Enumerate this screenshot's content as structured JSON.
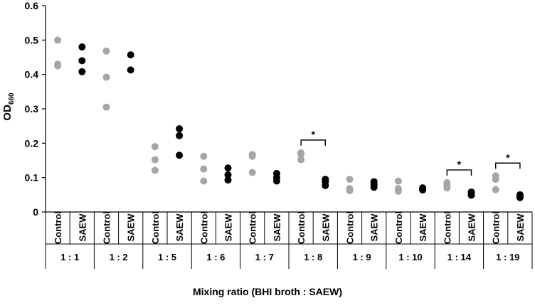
{
  "chart_data": {
    "type": "scatter",
    "title": "",
    "ylabel_main": "OD",
    "ylabel_sub": "660",
    "xlabel": "Mixing ratio (BHI broth : SAEW)",
    "ylim": [
      0,
      0.6
    ],
    "yticks": [
      0,
      0.1,
      0.2,
      0.3,
      0.4,
      0.5,
      0.6
    ],
    "ytick_labels": [
      "0",
      "0.1",
      "0.2",
      "0.3",
      "0.4",
      "0.5",
      "0.6"
    ],
    "series": [
      {
        "name": "Control",
        "color": "#a6a6a6"
      },
      {
        "name": "SAEW",
        "color": "#000000"
      }
    ],
    "significance_label": "*",
    "groups": [
      {
        "ratio": "1 : 1",
        "control": [
          0.5,
          0.43,
          0.425
        ],
        "saew": [
          0.48,
          0.44,
          0.408
        ],
        "significant": false
      },
      {
        "ratio": "1 : 2",
        "control": [
          0.468,
          0.392,
          0.305
        ],
        "saew": [
          0.457,
          0.413
        ],
        "significant": false
      },
      {
        "ratio": "1 : 5",
        "control": [
          0.19,
          0.152,
          0.121
        ],
        "saew": [
          0.242,
          0.222,
          0.165
        ],
        "significant": false
      },
      {
        "ratio": "1 : 6",
        "control": [
          0.162,
          0.125,
          0.09
        ],
        "saew": [
          0.128,
          0.108,
          0.093
        ],
        "significant": false
      },
      {
        "ratio": "1 : 7",
        "control": [
          0.167,
          0.162,
          0.115
        ],
        "saew": [
          0.112,
          0.1,
          0.09
        ],
        "significant": false
      },
      {
        "ratio": "1 : 8",
        "control": [
          0.172,
          0.168,
          0.152
        ],
        "saew": [
          0.095,
          0.088,
          0.077
        ],
        "significant": true
      },
      {
        "ratio": "1 : 9",
        "control": [
          0.095,
          0.068,
          0.062
        ],
        "saew": [
          0.088,
          0.08,
          0.072
        ],
        "significant": false
      },
      {
        "ratio": "1 : 10",
        "control": [
          0.09,
          0.068,
          0.06
        ],
        "saew": [
          0.07,
          0.067,
          0.064
        ],
        "significant": false
      },
      {
        "ratio": "1 : 14",
        "control": [
          0.085,
          0.078,
          0.07
        ],
        "saew": [
          0.058,
          0.053,
          0.049
        ],
        "significant": true
      },
      {
        "ratio": "1 : 19",
        "control": [
          0.105,
          0.095,
          0.065
        ],
        "saew": [
          0.05,
          0.046,
          0.042
        ],
        "significant": true
      }
    ]
  }
}
